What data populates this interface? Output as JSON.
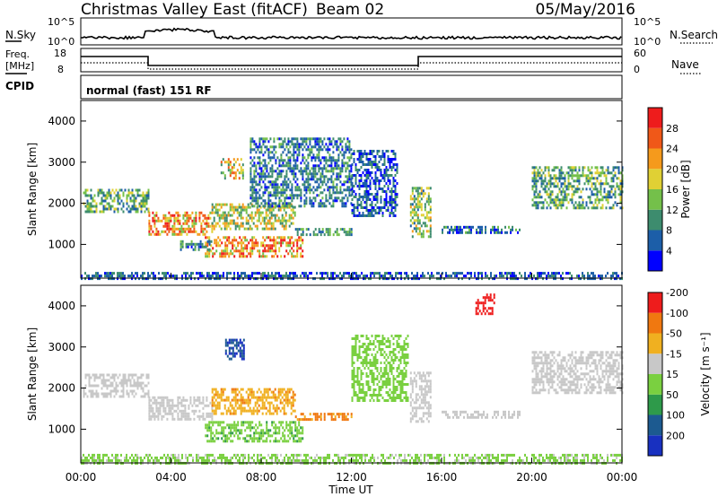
{
  "header": {
    "station": "Christmas Valley East (fitACF)",
    "beam": "Beam 02",
    "date": "05/May/2016"
  },
  "panels": {
    "nsky": {
      "left_label": "N.Sky",
      "right_label": "N.Search",
      "ticks_left": [
        "10^5",
        "10^0"
      ],
      "ticks_right": [
        "10^5",
        "10^0"
      ]
    },
    "freq": {
      "left_label_1": "Freq.",
      "left_label_2": "[MHz]",
      "right_label": "Nave",
      "ticks_left": [
        "18",
        "8"
      ],
      "ticks_right": [
        "60",
        "0"
      ]
    },
    "cpid": {
      "label": "CPID",
      "text": "normal (fast) 151 RF"
    }
  },
  "chart_data": [
    {
      "type": "heatmap",
      "title": "",
      "xlabel": "Time UT",
      "ylabel": "Slant Range [km]",
      "x_ticks": [
        "00:00",
        "04:00",
        "08:00",
        "12:00",
        "16:00",
        "20:00",
        "00:00"
      ],
      "x_range_hours": [
        0,
        24
      ],
      "y_ticks": [
        1000,
        2000,
        3000,
        4000
      ],
      "ylim": [
        180,
        4500
      ],
      "colorbar": {
        "label": "Power [dB]",
        "ticks": [
          4,
          8,
          12,
          16,
          20,
          24,
          28
        ],
        "colors": [
          "#0000ff",
          "#1c5ea8",
          "#3d8c6e",
          "#74c04a",
          "#e0d034",
          "#f59a1c",
          "#f05818",
          "#ee1c1c"
        ]
      },
      "regions": [
        {
          "t0": 0.1,
          "t1": 3.0,
          "r0": 1800,
          "r1": 2350,
          "level": 12
        },
        {
          "t0": 3.0,
          "t1": 5.8,
          "r0": 1250,
          "r1": 1800,
          "level": 22
        },
        {
          "t0": 5.8,
          "t1": 9.5,
          "r0": 1350,
          "r1": 2000,
          "level": 16
        },
        {
          "t0": 5.5,
          "t1": 9.8,
          "r0": 700,
          "r1": 1200,
          "level": 22
        },
        {
          "t0": 4.4,
          "t1": 5.8,
          "r0": 900,
          "r1": 1100,
          "level": 8
        },
        {
          "t0": 9.5,
          "t1": 12.0,
          "r0": 1250,
          "r1": 1400,
          "level": 10
        },
        {
          "t0": 6.2,
          "t1": 7.2,
          "r0": 2600,
          "r1": 3100,
          "level": 18
        },
        {
          "t0": 7.5,
          "t1": 12.0,
          "r0": 1900,
          "r1": 3600,
          "level": 8
        },
        {
          "t0": 12.0,
          "t1": 14.0,
          "r0": 1700,
          "r1": 3300,
          "level": 6
        },
        {
          "t0": 14.6,
          "t1": 15.5,
          "r0": 1200,
          "r1": 2400,
          "level": 14
        },
        {
          "t0": 16.0,
          "t1": 19.5,
          "r0": 1300,
          "r1": 1450,
          "level": 8
        },
        {
          "t0": 20.0,
          "t1": 24.0,
          "r0": 1900,
          "r1": 2900,
          "level": 12
        },
        {
          "t0": 0.0,
          "t1": 24.0,
          "r0": 180,
          "r1": 330,
          "level": 6
        }
      ]
    },
    {
      "type": "heatmap",
      "title": "",
      "xlabel": "Time UT",
      "ylabel": "Slant Range [km]",
      "x_ticks": [
        "00:00",
        "04:00",
        "08:00",
        "12:00",
        "16:00",
        "20:00",
        "00:00"
      ],
      "x_range_hours": [
        0,
        24
      ],
      "y_ticks": [
        1000,
        2000,
        3000,
        4000
      ],
      "ylim": [
        180,
        4500
      ],
      "colorbar": {
        "label": "Velocity [m s⁻¹]",
        "ticks": [
          200,
          100,
          50,
          15,
          -15,
          -50,
          -100,
          -200
        ],
        "colors": [
          "#1830c0",
          "#1c5a90",
          "#2e9a4a",
          "#7ad040",
          "#c8c8c8",
          "#f0b020",
          "#f07810",
          "#ee1c1c"
        ]
      },
      "regions": [
        {
          "t0": 0.1,
          "t1": 3.0,
          "r0": 1800,
          "r1": 2350,
          "level": 0
        },
        {
          "t0": 3.0,
          "t1": 5.8,
          "r0": 1250,
          "r1": 1800,
          "level": 0
        },
        {
          "t0": 5.8,
          "t1": 9.5,
          "r0": 1350,
          "r1": 2000,
          "level": -40
        },
        {
          "t0": 5.5,
          "t1": 9.8,
          "r0": 700,
          "r1": 1200,
          "level": 40
        },
        {
          "t0": 6.4,
          "t1": 7.2,
          "r0": 2700,
          "r1": 3200,
          "level": 200
        },
        {
          "t0": 9.5,
          "t1": 12.0,
          "r0": 1250,
          "r1": 1400,
          "level": -60
        },
        {
          "t0": 12.0,
          "t1": 14.5,
          "r0": 1700,
          "r1": 3300,
          "level": 30
        },
        {
          "t0": 14.6,
          "t1": 15.5,
          "r0": 1200,
          "r1": 2400,
          "level": 0
        },
        {
          "t0": 16.0,
          "t1": 19.5,
          "r0": 1300,
          "r1": 1450,
          "level": 0
        },
        {
          "t0": 17.5,
          "t1": 18.3,
          "r0": 3800,
          "r1": 4300,
          "level": -200
        },
        {
          "t0": 20.0,
          "t1": 24.0,
          "r0": 1900,
          "r1": 2900,
          "level": 0
        },
        {
          "t0": 0.0,
          "t1": 24.0,
          "r0": 180,
          "r1": 400,
          "level": 20
        }
      ]
    }
  ]
}
